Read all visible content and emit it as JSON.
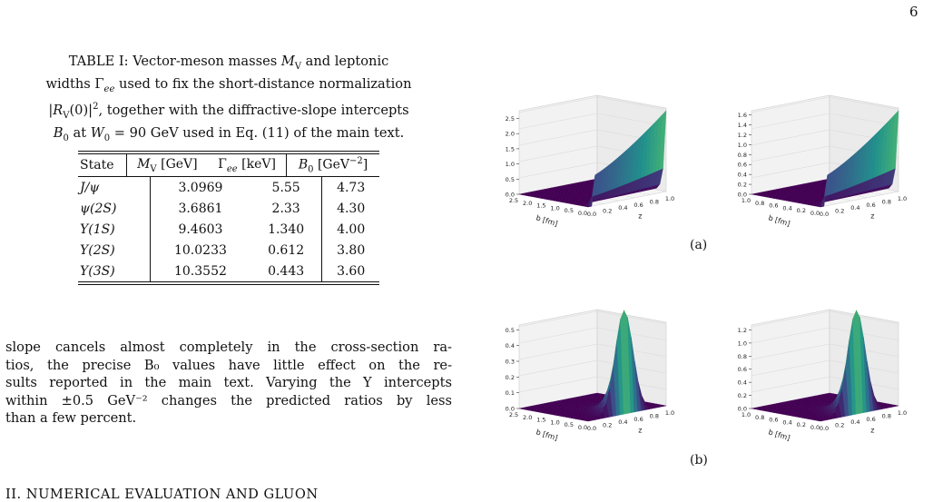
{
  "page_number": "6",
  "table_caption": [
    "TABLE I: Vector-meson masses M_V and leptonic",
    "widths Γ_ee used to fix the short-distance normalization",
    "|R_V(0)|², together with the diffractive-slope intercepts",
    "B₀ at W₀ = 90 GeV used in Eq. (11) of the main text."
  ],
  "table": {
    "headers": [
      "State",
      "M_V [GeV]",
      "Γ_ee [keV]",
      "B₀ [GeV⁻²]"
    ],
    "rows": [
      [
        "J/ψ",
        "3.0969",
        "5.55",
        "4.73"
      ],
      [
        "ψ(2S)",
        "3.6861",
        "2.33",
        "4.30"
      ],
      [
        "Υ(1S)",
        "9.4603",
        "1.340",
        "4.00"
      ],
      [
        "Υ(2S)",
        "10.0233",
        "0.612",
        "3.80"
      ],
      [
        "Υ(3S)",
        "10.3552",
        "0.443",
        "3.60"
      ]
    ]
  },
  "body_text": [
    "slope cancels almost completely in the cross-section ra-",
    "tios, the precise B₀ values have little effect on the re-",
    "sults reported in the main text. Varying the Υ intercepts",
    "within ±0.5 GeV⁻² changes the predicted ratios by less",
    "than a few percent."
  ],
  "section_heading": "II. NUMERICAL EVALUATION AND GLUON",
  "figure_labels": {
    "a": "(a)",
    "b": "(b)"
  },
  "chart_data": [
    {
      "type": "surface",
      "panel": "a-left",
      "xlabel": "b [fm]",
      "ylabel": "z",
      "zticks": [
        "0.0",
        "0.5",
        "1.0",
        "1.5",
        "2.0",
        "2.5"
      ],
      "zlim": [
        0,
        2.7
      ],
      "bticks": [
        "0.0",
        "0.5",
        "1.0",
        "1.5",
        "2.0",
        "2.5"
      ],
      "zaxis_ticks": [
        "0.0",
        "0.2",
        "0.4",
        "0.6",
        "0.8",
        "1.0"
      ],
      "shape": "wall",
      "colormap": "viridis"
    },
    {
      "type": "surface",
      "panel": "a-right",
      "xlabel": "b [fm]",
      "ylabel": "z",
      "zticks": [
        "0.0",
        "0.2",
        "0.4",
        "0.6",
        "0.8",
        "1.0",
        "1.2",
        "1.4",
        "1.6"
      ],
      "zlim": [
        0,
        1.65
      ],
      "bticks": [
        "0.0",
        "0.2",
        "0.4",
        "0.6",
        "0.8",
        "1.0"
      ],
      "zaxis_ticks": [
        "0.0",
        "0.2",
        "0.4",
        "0.6",
        "0.8",
        "1.0"
      ],
      "shape": "wall",
      "colormap": "viridis"
    },
    {
      "type": "surface",
      "panel": "b-left",
      "xlabel": "b [fm]",
      "ylabel": "z",
      "zticks": [
        "0.0",
        "0.1",
        "0.2",
        "0.3",
        "0.4",
        "0.5"
      ],
      "zlim": [
        0,
        0.52
      ],
      "bticks": [
        "0.0",
        "0.5",
        "1.0",
        "1.5",
        "2.0",
        "2.5"
      ],
      "zaxis_ticks": [
        "0.0",
        "0.2",
        "0.4",
        "0.6",
        "0.8",
        "1.0"
      ],
      "shape": "peak",
      "colormap": "viridis"
    },
    {
      "type": "surface",
      "panel": "b-right",
      "xlabel": "b [fm]",
      "ylabel": "z",
      "zticks": [
        "0.0",
        "0.2",
        "0.4",
        "0.6",
        "0.8",
        "1.0",
        "1.2"
      ],
      "zlim": [
        0,
        1.25
      ],
      "bticks": [
        "0.0",
        "0.2",
        "0.4",
        "0.6",
        "0.8",
        "1.0"
      ],
      "zaxis_ticks": [
        "0.0",
        "0.2",
        "0.4",
        "0.6",
        "0.8",
        "1.0"
      ],
      "shape": "peak",
      "colormap": "viridis"
    }
  ]
}
